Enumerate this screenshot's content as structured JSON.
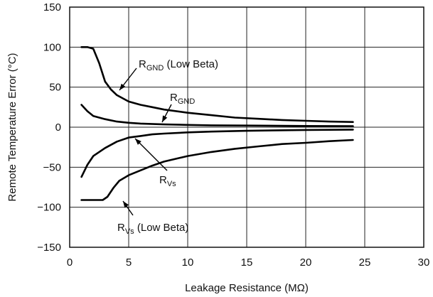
{
  "chart_data": {
    "type": "line",
    "xlabel": "Leakage Resistance (MΩ)",
    "ylabel": "Remote Temperature Error (°C)",
    "xlim": [
      0,
      30
    ],
    "ylim": [
      -150,
      150
    ],
    "x_ticks": [
      0,
      5,
      10,
      15,
      20,
      25,
      30
    ],
    "y_ticks": [
      150,
      100,
      50,
      0,
      -50,
      -100,
      -150
    ],
    "grid": true,
    "series": [
      {
        "name": "RGND (Low Beta)",
        "label_main": "R",
        "label_sub": "GND",
        "label_suffix": " (Low Beta)",
        "points": [
          [
            1,
            100
          ],
          [
            1.5,
            100
          ],
          [
            2,
            98
          ],
          [
            2.5,
            80
          ],
          [
            3,
            57
          ],
          [
            3.5,
            47
          ],
          [
            4,
            40
          ],
          [
            5,
            32
          ],
          [
            6,
            28
          ],
          [
            7,
            25
          ],
          [
            8,
            22
          ],
          [
            10,
            18
          ],
          [
            12,
            15
          ],
          [
            14,
            12
          ],
          [
            16,
            10.5
          ],
          [
            18,
            9
          ],
          [
            20,
            8
          ],
          [
            22,
            7
          ],
          [
            24,
            6.5
          ]
        ]
      },
      {
        "name": "RGND",
        "label_main": "R",
        "label_sub": "GND",
        "label_suffix": "",
        "points": [
          [
            1,
            28
          ],
          [
            1.5,
            20
          ],
          [
            2,
            14
          ],
          [
            3,
            10
          ],
          [
            4,
            7
          ],
          [
            5,
            5.5
          ],
          [
            6,
            4.5
          ],
          [
            8,
            3.5
          ],
          [
            10,
            2.8
          ],
          [
            12,
            2.3
          ],
          [
            15,
            2
          ],
          [
            20,
            1.5
          ],
          [
            24,
            1.2
          ]
        ]
      },
      {
        "name": "RVs",
        "label_main": "R",
        "label_sub": "Vs",
        "label_suffix": "",
        "points": [
          [
            1,
            -62
          ],
          [
            1.5,
            -47
          ],
          [
            2,
            -36
          ],
          [
            3,
            -26
          ],
          [
            4,
            -18
          ],
          [
            5,
            -13
          ],
          [
            6,
            -11
          ],
          [
            7,
            -9
          ],
          [
            8,
            -8
          ],
          [
            10,
            -6.5
          ],
          [
            12,
            -5.5
          ],
          [
            15,
            -4.5
          ],
          [
            20,
            -3.5
          ],
          [
            24,
            -3
          ]
        ]
      },
      {
        "name": "RVs (Low Beta)",
        "label_main": "R",
        "label_sub": "Vs",
        "label_suffix": " (Low Beta)",
        "points": [
          [
            1,
            -91
          ],
          [
            2,
            -91
          ],
          [
            2.8,
            -91
          ],
          [
            3.2,
            -87
          ],
          [
            3.7,
            -76
          ],
          [
            4.2,
            -67
          ],
          [
            5,
            -60
          ],
          [
            6,
            -54
          ],
          [
            7,
            -48
          ],
          [
            8,
            -43
          ],
          [
            10,
            -36
          ],
          [
            12,
            -31
          ],
          [
            14,
            -27
          ],
          [
            16,
            -24
          ],
          [
            18,
            -21
          ],
          [
            20,
            -19.5
          ],
          [
            22,
            -17.5
          ],
          [
            24,
            -16
          ]
        ]
      }
    ],
    "annotations": [
      {
        "series": "RGND (Low Beta)",
        "text_main": "R",
        "text_sub": "GND",
        "text_suffix": " (Low Beta)"
      },
      {
        "series": "RGND",
        "text_main": "R",
        "text_sub": "GND",
        "text_suffix": ""
      },
      {
        "series": "RVs",
        "text_main": "R",
        "text_sub": "Vs",
        "text_suffix": ""
      },
      {
        "series": "RVs (Low Beta)",
        "text_main": "R",
        "text_sub": "Vs",
        "text_suffix": " (Low Beta)"
      }
    ]
  }
}
